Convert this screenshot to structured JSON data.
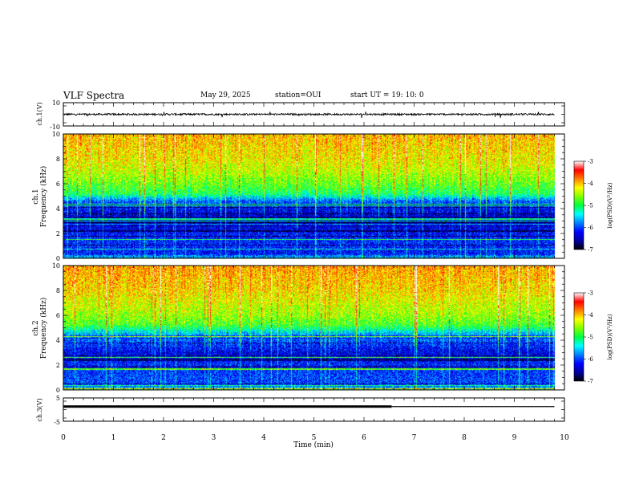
{
  "header": {
    "title": "VLF Spectra",
    "date": "May 29, 2025",
    "station": "station=OUI",
    "start": "start  UT  =    19: 10: 0"
  },
  "chart_data": [
    {
      "type": "line",
      "panel": "ch1-waveform",
      "ylabel": "ch.1(V)",
      "ylim": [
        -10,
        10
      ],
      "ytick_labels": [
        "10",
        "-10"
      ],
      "x_range": [
        0,
        9.8
      ],
      "baseline_v": 0,
      "amplitude_v": 1.5,
      "color": "#000000"
    },
    {
      "type": "heatmap",
      "panel": "ch1-spectrogram",
      "ylabel": "ch.1\nFrequency (kHz)",
      "ylim": [
        0,
        10
      ],
      "yticks": [
        0,
        2,
        4,
        6,
        8,
        10
      ],
      "x_range": [
        0,
        9.8
      ],
      "colorbar": {
        "label": "log(PSD)(V²/Hz)",
        "range": [
          -7,
          -3
        ],
        "ticks": [
          -3,
          -4,
          -5,
          -6,
          -7
        ],
        "colors": [
          "#000000",
          "#0000a0",
          "#0000ff",
          "#0080ff",
          "#00ffff",
          "#00ff40",
          "#80ff00",
          "#ffff00",
          "#ff8000",
          "#ff0000",
          "#ffffff"
        ]
      },
      "level_profile": {
        "freq_khz": [
          0,
          0.3,
          1.0,
          2.0,
          3.0,
          4.0,
          4.6,
          5.2,
          6.0,
          7.0,
          8.0,
          9.0,
          10.0
        ],
        "log_psd": [
          -5.2,
          -6.2,
          -6.1,
          -6.2,
          -6.5,
          -6.2,
          -5.9,
          -5.0,
          -4.7,
          -4.4,
          -4.2,
          -4.1,
          -4.0
        ]
      }
    },
    {
      "type": "heatmap",
      "panel": "ch2-spectrogram",
      "ylabel": "ch.2\nFrequency (kHz)",
      "ylim": [
        0,
        10
      ],
      "yticks": [
        0,
        2,
        4,
        6,
        8,
        10
      ],
      "x_range": [
        0,
        9.8
      ],
      "colorbar": {
        "label": "log(PSD)(V²/Hz)",
        "range": [
          -7,
          -3
        ],
        "ticks": [
          -3,
          -4,
          -5,
          -6,
          -7
        ],
        "colors": [
          "#000000",
          "#0000a0",
          "#0000ff",
          "#0080ff",
          "#00ffff",
          "#00ff40",
          "#80ff00",
          "#ffff00",
          "#ff8000",
          "#ff0000",
          "#ffffff"
        ]
      },
      "level_profile": {
        "freq_khz": [
          0,
          0.3,
          1.0,
          2.0,
          3.0,
          4.0,
          4.6,
          5.2,
          6.0,
          7.0,
          8.0,
          9.0,
          10.0
        ],
        "log_psd": [
          -5.0,
          -6.0,
          -6.0,
          -6.1,
          -6.3,
          -5.9,
          -5.5,
          -4.8,
          -4.5,
          -4.3,
          -4.1,
          -4.0,
          -3.9
        ]
      }
    },
    {
      "type": "line",
      "panel": "ch3-waveform",
      "ylabel": "ch.3(V)",
      "ylim": [
        -5,
        5
      ],
      "ytick_labels": [
        "5",
        "-5"
      ],
      "segments": [
        {
          "x_from": 0,
          "x_to": 6.55,
          "value": 1.3,
          "style": "thick"
        },
        {
          "x_from": 0,
          "x_to": 9.8,
          "value": 1.3,
          "style": "thin"
        }
      ],
      "color": "#000000"
    }
  ],
  "xaxis": {
    "label": "Time (min)",
    "range": [
      0,
      10
    ],
    "ticks": [
      0,
      1,
      2,
      3,
      4,
      5,
      6,
      7,
      8,
      9,
      10
    ]
  }
}
